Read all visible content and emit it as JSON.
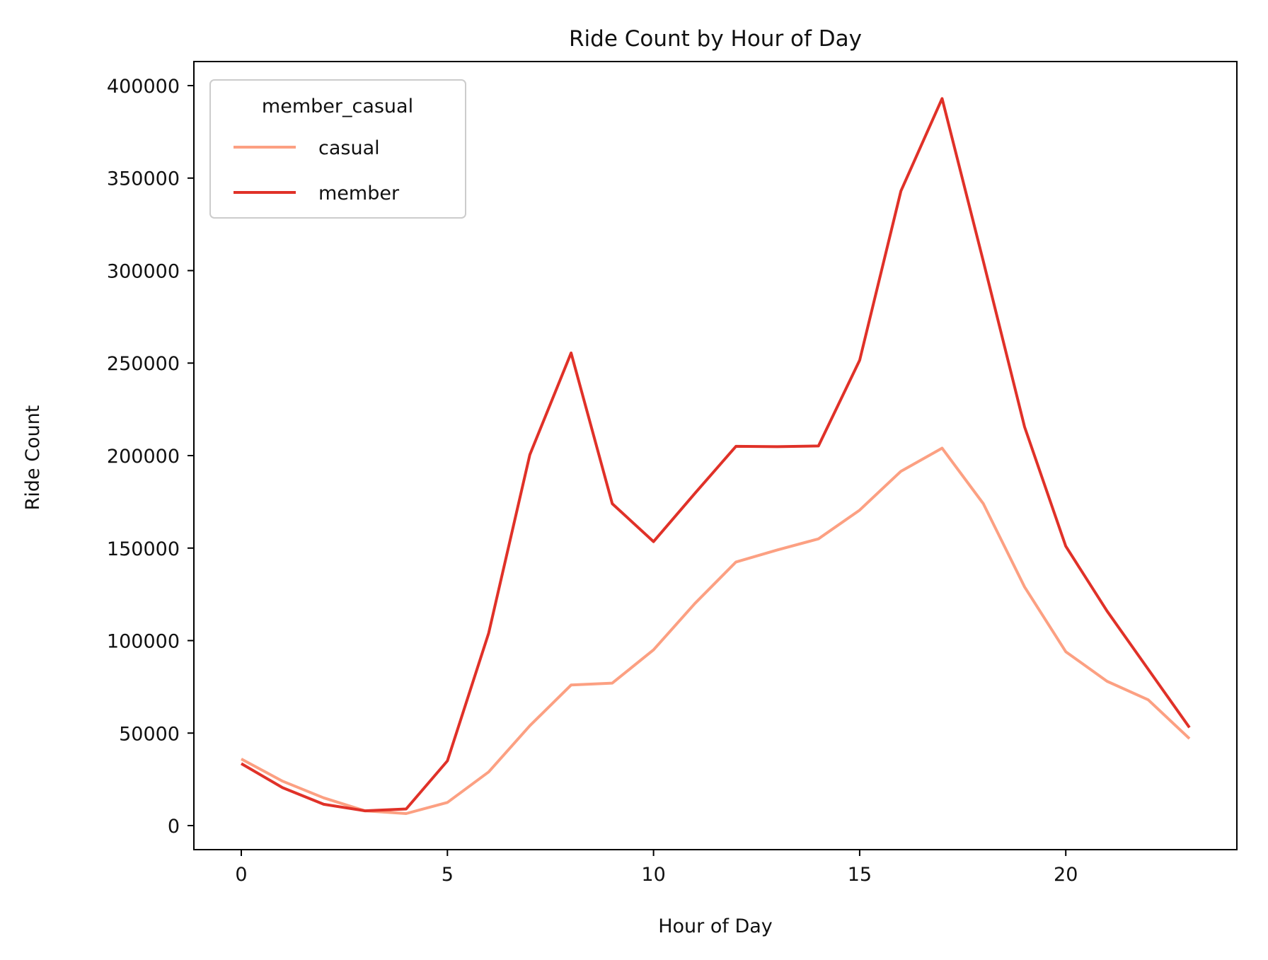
{
  "chart_data": {
    "type": "line",
    "title": "Ride Count by Hour of Day",
    "xlabel": "Hour of Day",
    "ylabel": "Ride Count",
    "x": [
      0,
      1,
      2,
      3,
      4,
      5,
      6,
      7,
      8,
      9,
      10,
      11,
      12,
      13,
      14,
      15,
      16,
      17,
      18,
      19,
      20,
      21,
      22,
      23
    ],
    "xticks": [
      0,
      5,
      10,
      15,
      20
    ],
    "yticks": [
      0,
      50000,
      100000,
      150000,
      200000,
      250000,
      300000,
      350000,
      400000
    ],
    "xlim": [
      -1.15,
      24.15
    ],
    "ylim": [
      -13000,
      413000
    ],
    "grid": false,
    "legend": {
      "title": "member_casual",
      "position": "top-left"
    },
    "series": [
      {
        "name": "casual",
        "color": "#fca082",
        "values": [
          36000,
          24000,
          15000,
          8000,
          6500,
          12500,
          29000,
          54000,
          76000,
          77000,
          95000,
          120000,
          142500,
          149000,
          155000,
          170500,
          191500,
          204000,
          174000,
          129000,
          94000,
          78000,
          68000,
          47000
        ]
      },
      {
        "name": "member",
        "color": "#e03128",
        "values": [
          33500,
          20500,
          11500,
          8000,
          9000,
          35000,
          104000,
          200500,
          255500,
          174000,
          153500,
          179500,
          205000,
          204800,
          205200,
          251500,
          343000,
          393000,
          305000,
          215500,
          151000,
          116000,
          84500,
          53000
        ]
      }
    ]
  }
}
